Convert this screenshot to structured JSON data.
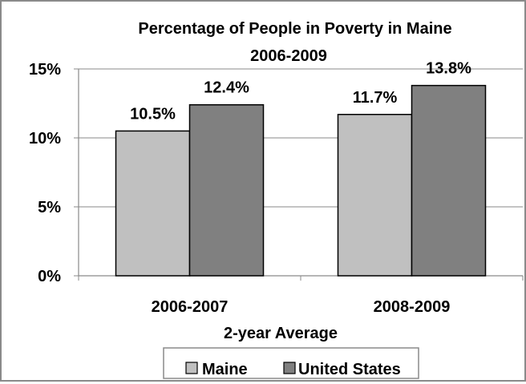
{
  "chart_data": {
    "type": "bar",
    "title_lines": [
      "Percentage of People in Poverty in Maine",
      "2006-2009"
    ],
    "xlabel": "2-year Average",
    "ylabel": "",
    "categories": [
      "2006-2007",
      "2008-2009"
    ],
    "series": [
      {
        "name": "Maine",
        "values": [
          10.5,
          11.7
        ],
        "labels": [
          "10.5%",
          "11.7%"
        ],
        "color": "#c0c0c0"
      },
      {
        "name": "United States",
        "values": [
          12.4,
          13.8
        ],
        "labels": [
          "12.4%",
          "13.8%"
        ],
        "color": "#808080"
      }
    ],
    "ylim": [
      0,
      15
    ],
    "yticks": [
      0,
      5,
      10,
      15
    ],
    "ytick_labels": [
      "0%",
      "5%",
      "10%",
      "15%"
    ],
    "grid": true,
    "legend_position": "bottom"
  }
}
